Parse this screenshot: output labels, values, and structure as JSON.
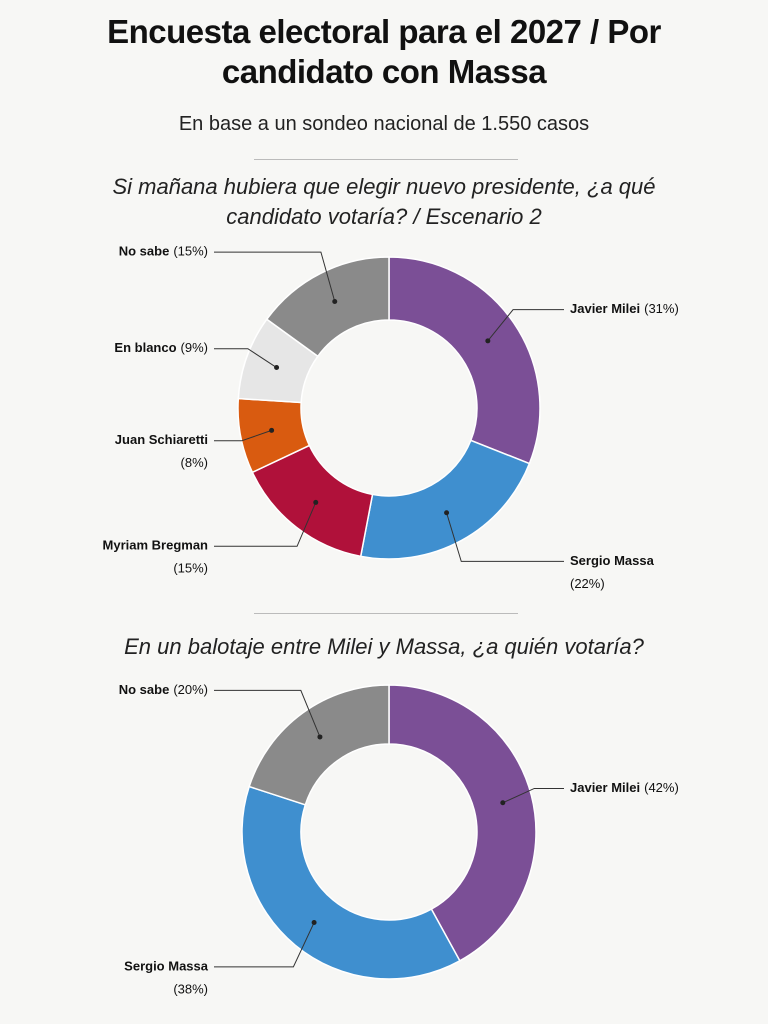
{
  "header": {
    "title": "Encuesta electoral para el 2027 / Por candidato con Massa",
    "subtitle": "En base a un sondeo nacional de 1.550 casos"
  },
  "chart_data": [
    {
      "type": "donut",
      "title": "Si mañana hubiera que elegir nuevo presidente, ¿a qué candidato votaría? / Escenario 2",
      "categories": [
        "Javier Milei",
        "Sergio Massa",
        "Myriam Bregman",
        "Juan Schiaretti",
        "En blanco",
        "No sabe"
      ],
      "values": [
        31,
        22,
        15,
        8,
        9,
        15
      ],
      "value_labels": [
        "(31%)",
        "(22%)",
        "(15%)",
        "(8%)",
        "(9%)",
        "(15%)"
      ],
      "colors": [
        "#7b4f96",
        "#3f8fcf",
        "#b0113a",
        "#d95b10",
        "#e6e6e6",
        "#8a8a8a"
      ]
    },
    {
      "type": "donut",
      "title": "En un balotaje entre Milei y Massa, ¿a quién votaría?",
      "categories": [
        "Javier Milei",
        "Sergio Massa",
        "No sabe"
      ],
      "values": [
        42,
        38,
        20
      ],
      "value_labels": [
        "(42%)",
        "(38%)",
        "(20%)"
      ],
      "colors": [
        "#7b4f96",
        "#3f8fcf",
        "#8a8a8a"
      ]
    }
  ]
}
